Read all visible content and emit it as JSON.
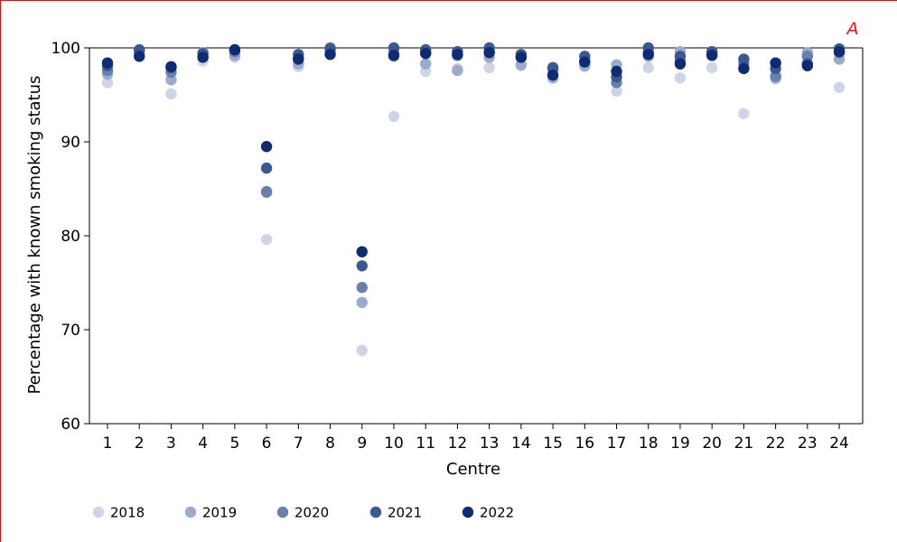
{
  "panel_label": "A",
  "colors": {
    "frame": "#c4161c",
    "panel_label": "#e8141e",
    "2018": "#cdd5e6",
    "2019": "#9aabcc",
    "2020": "#6880b0",
    "2021": "#3b5894",
    "2022": "#0c2d74"
  },
  "chart_data": {
    "type": "scatter",
    "title": "",
    "xlabel": "Centre",
    "ylabel": "Percentage with known smoking status",
    "ylim": [
      60,
      100
    ],
    "yticks": [
      60,
      70,
      80,
      90,
      100
    ],
    "categories": [
      "1",
      "2",
      "3",
      "4",
      "5",
      "6",
      "7",
      "8",
      "9",
      "10",
      "11",
      "12",
      "13",
      "14",
      "15",
      "16",
      "17",
      "18",
      "19",
      "20",
      "21",
      "22",
      "23",
      "24"
    ],
    "grid": false,
    "legend_position": "bottom",
    "series": [
      {
        "name": "2018",
        "values": [
          96.3,
          99.2,
          95.1,
          98.6,
          99.0,
          79.6,
          98.0,
          99.4,
          67.8,
          92.7,
          97.5,
          97.8,
          97.9,
          98.1,
          96.8,
          98.0,
          95.4,
          97.9,
          96.8,
          97.9,
          93.0,
          96.7,
          99.2,
          95.8
        ]
      },
      {
        "name": "2019",
        "values": [
          97.2,
          99.4,
          96.6,
          99.5,
          99.2,
          84.6,
          98.3,
          99.7,
          72.9,
          99.1,
          98.3,
          97.6,
          99.0,
          98.2,
          96.8,
          98.1,
          98.2,
          99.1,
          99.6,
          99.3,
          97.8,
          96.8,
          99.5,
          98.8
        ]
      },
      {
        "name": "2020",
        "values": [
          97.6,
          99.7,
          97.4,
          99.0,
          99.6,
          84.7,
          98.9,
          100.0,
          74.5,
          99.4,
          99.5,
          99.2,
          99.6,
          99.0,
          97.7,
          98.6,
          96.3,
          99.5,
          98.6,
          99.5,
          98.3,
          97.0,
          99.1,
          99.5
        ]
      },
      {
        "name": "2021",
        "values": [
          98.1,
          99.8,
          97.9,
          99.4,
          99.8,
          87.2,
          99.3,
          99.9,
          76.8,
          100.0,
          99.8,
          99.6,
          100.0,
          99.3,
          97.9,
          99.1,
          96.9,
          100.0,
          99.1,
          99.6,
          98.8,
          97.8,
          98.3,
          99.9
        ]
      },
      {
        "name": "2022",
        "values": [
          98.4,
          99.1,
          98.0,
          99.0,
          99.8,
          89.5,
          98.8,
          99.3,
          78.3,
          99.2,
          99.4,
          99.3,
          99.5,
          99.0,
          97.1,
          98.5,
          97.5,
          99.3,
          98.3,
          99.2,
          97.8,
          98.4,
          98.1,
          99.6
        ]
      }
    ]
  }
}
